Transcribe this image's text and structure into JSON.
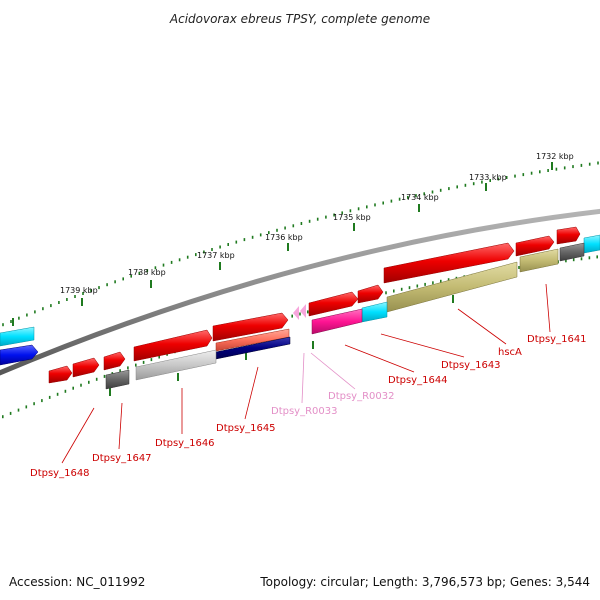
{
  "title": "Acidovorax ebreus TPSY, complete genome",
  "footer": {
    "accession": "Accession: NC_011992",
    "summary": "Topology: circular; Length: 3,796,573 bp; Genes: 3,544"
  },
  "ticks": [
    {
      "label": "1732 kbp"
    },
    {
      "label": "1733 kbp"
    },
    {
      "label": "1734 kbp"
    },
    {
      "label": "1735 kbp"
    },
    {
      "label": "1736 kbp"
    },
    {
      "label": "1737 kbp"
    },
    {
      "label": "1738 kbp"
    },
    {
      "label": "1739 kbp"
    }
  ],
  "gene_labels": [
    {
      "text": "Dtpsy_1641",
      "color": "#cc0000"
    },
    {
      "text": "hscA",
      "color": "#cc0000"
    },
    {
      "text": "Dtpsy_1643",
      "color": "#cc0000"
    },
    {
      "text": "Dtpsy_1644",
      "color": "#cc0000"
    },
    {
      "text": "Dtpsy_R0032",
      "color": "#e38fc7"
    },
    {
      "text": "Dtpsy_R0033",
      "color": "#e38fc7"
    },
    {
      "text": "Dtpsy_1645",
      "color": "#cc0000"
    },
    {
      "text": "Dtpsy_1646",
      "color": "#cc0000"
    },
    {
      "text": "Dtpsy_1647",
      "color": "#cc0000"
    },
    {
      "text": "Dtpsy_1648",
      "color": "#cc0000"
    }
  ],
  "colors": {
    "backbone": "#888888",
    "cds_red": "#ee0000",
    "rrna_pink": "#f7a6dc",
    "tick_green": "#1f7a1f",
    "cyan": "#00e5ff",
    "blue": "#0011ee",
    "olive": "#c7c07a",
    "magenta": "#ff1493",
    "salmon": "#ff6f5b",
    "navy": "#000080",
    "gray": "#666666",
    "light_gray": "#c8c8c8"
  }
}
